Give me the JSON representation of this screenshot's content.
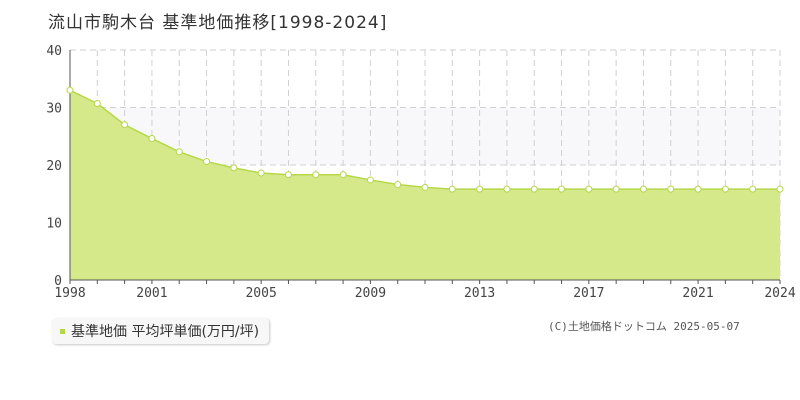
{
  "header": {
    "title": "流山市駒木台 基準地価推移[1998-2024]"
  },
  "legend": {
    "label": "基準地価 平均坪単価(万円/坪)"
  },
  "credit": {
    "text": "(C)土地価格ドットコム 2025-05-07"
  },
  "colors": {
    "fill": "#d6e98a",
    "line": "#b5d84a",
    "band": "#f8f8fa",
    "marker": "#ffffff"
  },
  "chart_data": {
    "type": "area",
    "x": [
      1998,
      1999,
      2000,
      2001,
      2002,
      2003,
      2004,
      2005,
      2006,
      2007,
      2008,
      2009,
      2010,
      2011,
      2012,
      2013,
      2014,
      2015,
      2016,
      2017,
      2018,
      2019,
      2020,
      2021,
      2022,
      2023,
      2024
    ],
    "series": [
      {
        "values": [
          33.0,
          30.7,
          27.0,
          24.6,
          22.3,
          20.6,
          19.5,
          18.6,
          18.3,
          18.3,
          18.3,
          17.4,
          16.6,
          16.1,
          15.8,
          15.8,
          15.8,
          15.8,
          15.8,
          15.8,
          15.8,
          15.8,
          15.8,
          15.8,
          15.8,
          15.8,
          15.8
        ]
      }
    ],
    "xlim": [
      1998,
      2024
    ],
    "ylim": [
      0,
      40
    ],
    "yticks": [
      0,
      10,
      20,
      30,
      40
    ],
    "xtick_labels": [
      1998,
      2001,
      2005,
      2009,
      2013,
      2017,
      2021,
      2024
    ],
    "grid": true,
    "legend_position": "bottom-left"
  }
}
